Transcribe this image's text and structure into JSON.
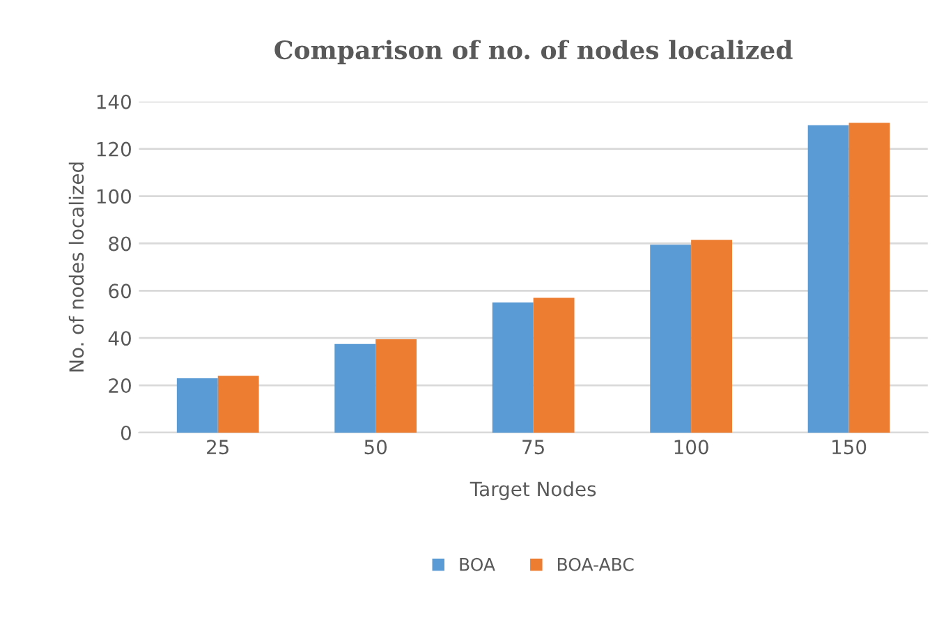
{
  "chart_data": {
    "type": "bar",
    "title": "Comparison of no. of nodes localized",
    "xlabel": "Target Nodes",
    "ylabel": "No. of nodes localized",
    "categories": [
      "25",
      "50",
      "75",
      "100",
      "150"
    ],
    "series": [
      {
        "name": "BOA",
        "color": "#5b9bd5",
        "values": [
          23,
          37.5,
          55,
          79.5,
          130
        ]
      },
      {
        "name": "BOA-ABC",
        "color": "#ed7d31",
        "values": [
          24,
          39.5,
          57,
          81.5,
          131
        ]
      }
    ],
    "ylim": [
      0,
      140
    ],
    "yticks": [
      0,
      20,
      40,
      60,
      80,
      100,
      120,
      140
    ],
    "grid": "y",
    "legend": "bottom"
  }
}
